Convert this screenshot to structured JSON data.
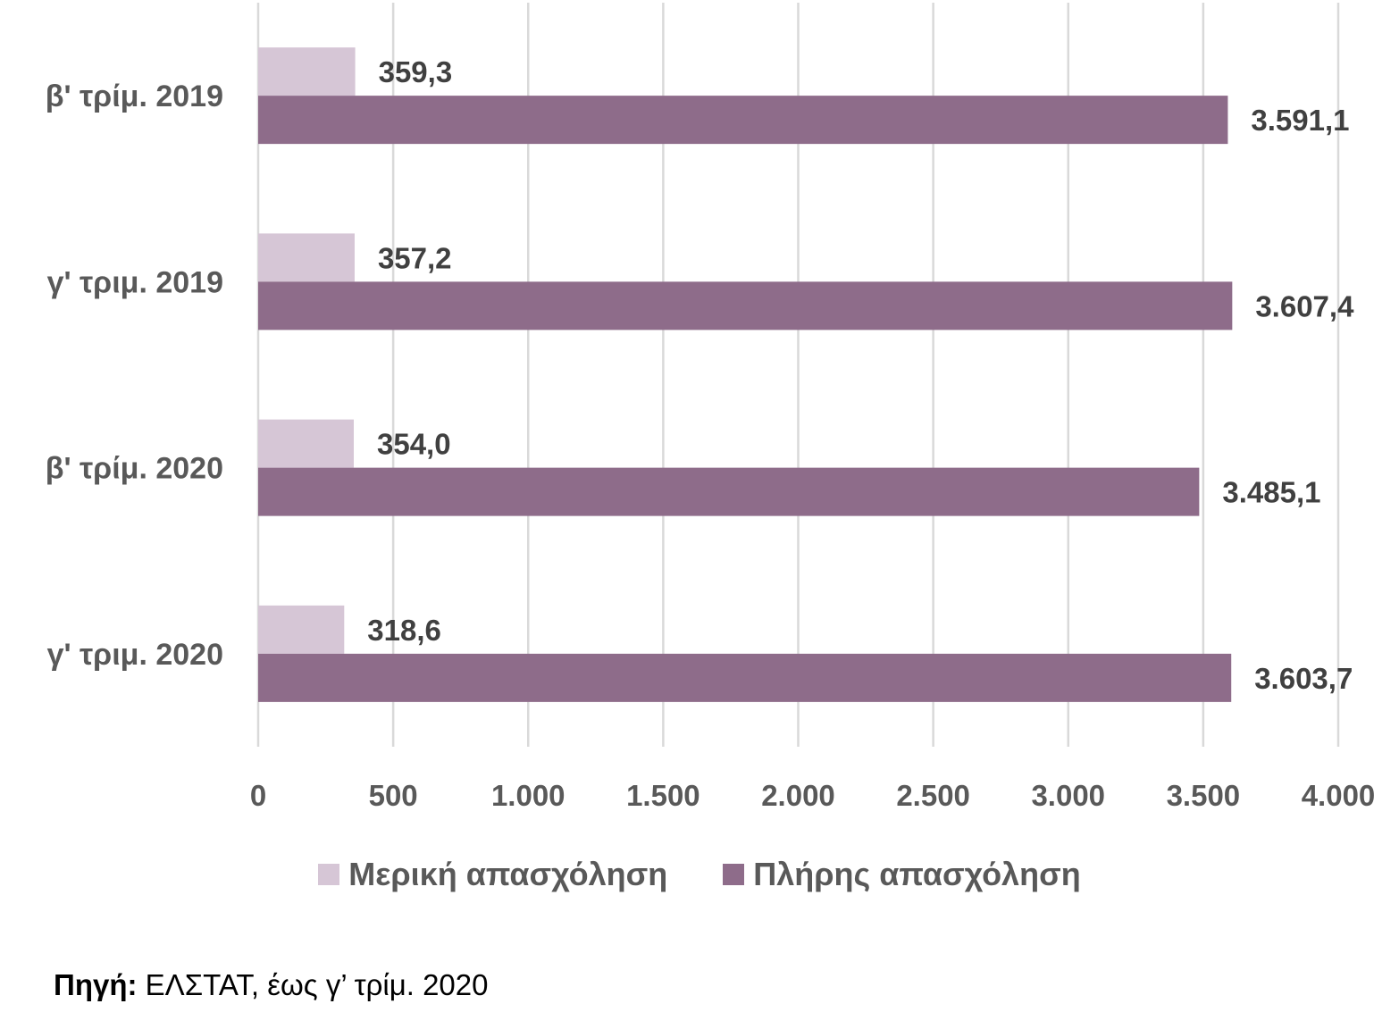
{
  "chart_data": {
    "type": "bar",
    "orientation": "horizontal",
    "categories": [
      "β' τρίμ. 2019",
      "γ' τριμ. 2019",
      "β' τρίμ. 2020",
      "γ' τριμ. 2020"
    ],
    "series": [
      {
        "name": "Μερική απασχόληση",
        "color": "#d6c6d6",
        "values": [
          359.3,
          357.2,
          354.0,
          318.6
        ],
        "labels": [
          "359,3",
          "357,2",
          "354,0",
          "318,6"
        ]
      },
      {
        "name": "Πλήρης απασχόληση",
        "color": "#8e6c8a",
        "values": [
          3591.1,
          3607.4,
          3485.1,
          3603.7
        ],
        "labels": [
          "3.591,1",
          "3.607,4",
          "3.485,1",
          "3.603,7"
        ]
      }
    ],
    "xlim": [
      0,
      4000
    ],
    "xticks": [
      0,
      500,
      1000,
      1500,
      2000,
      2500,
      3000,
      3500,
      4000
    ],
    "xtick_labels": [
      "0",
      "500",
      "1.000",
      "1.500",
      "2.000",
      "2.500",
      "3.000",
      "3.500",
      "4.000"
    ],
    "grid": "vertical",
    "legend": "bottom",
    "title": "",
    "xlabel": "",
    "ylabel": ""
  },
  "source": {
    "label": "Πηγή:",
    "text": "ΕΛΣΤΑΤ, έως γ’ τρίμ. 2020"
  }
}
